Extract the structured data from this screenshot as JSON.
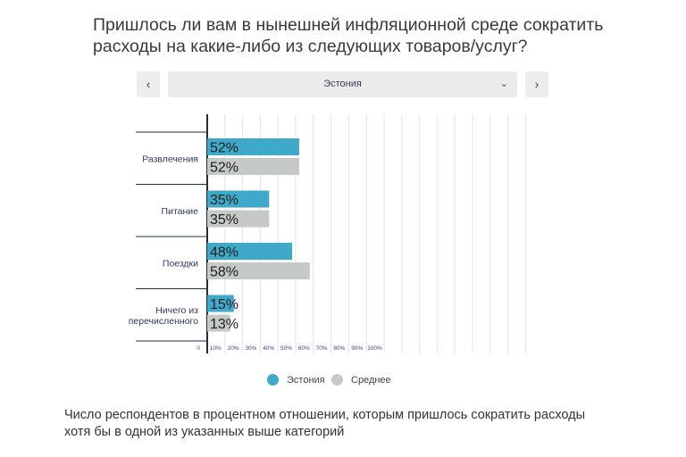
{
  "title_lines": [
    "Пришлось ли вам в нынешней инфляционной среде сократить",
    "расходы на какие-либо из следующих товаров/услуг?"
  ],
  "navigation": {
    "prev_icon": "chevron-left-icon",
    "next_icon": "chevron-right-icon",
    "prev_glyph": "‹",
    "next_glyph": "›",
    "selected_country": "Эстония",
    "dropdown_glyph": "⌄"
  },
  "colors": {
    "estonia": "#3fa9c9",
    "average": "#c5c9c8",
    "axis": "#1f2d44"
  },
  "chart_data": {
    "type": "bar",
    "orientation": "horizontal",
    "categories": [
      "Развлечения",
      "Питание",
      "Поездки",
      "Ничего из перечисленного"
    ],
    "category_lines": [
      [
        "Развлечения"
      ],
      [
        "Питание"
      ],
      [
        "Поездки"
      ],
      [
        "Ничего из",
        "перечисленного"
      ]
    ],
    "series": [
      {
        "name": "Эстония",
        "values": [
          52,
          35,
          48,
          15
        ],
        "labels": [
          "52%",
          "35%",
          "48%",
          "15%"
        ]
      },
      {
        "name": "Среднее",
        "values": [
          52,
          35,
          58,
          13
        ],
        "labels": [
          "52%",
          "35%",
          "58%",
          "13%"
        ]
      }
    ],
    "xlim": [
      0,
      100
    ],
    "x_ticks": [
      0,
      10,
      20,
      30,
      40,
      50,
      60,
      70,
      80,
      90,
      100
    ],
    "x_tick_labels": [
      "0",
      "10%",
      "20%",
      "30%",
      "40%",
      "50%",
      "60%",
      "70%",
      "80%",
      "90%",
      "100%"
    ],
    "grid": true,
    "legend_position": "bottom"
  },
  "footer_lines": [
    "Число респондентов в процентном отношении, которым пришлось сократить расходы",
    "хотя бы в одной из указанных выше категорий"
  ]
}
